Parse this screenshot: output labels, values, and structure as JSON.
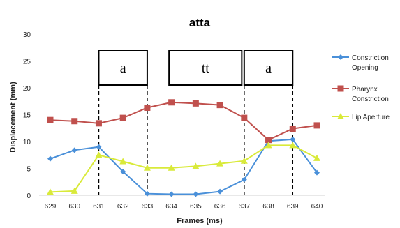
{
  "chart_data": {
    "type": "line",
    "title": "atta",
    "xlabel": "Frames (ms)",
    "ylabel": "Displacement (mm)",
    "ylim": [
      0,
      30
    ],
    "yticks": [
      0,
      5,
      10,
      15,
      20,
      25,
      30
    ],
    "categories": [
      "629",
      "630",
      "631",
      "632",
      "633",
      "634",
      "635",
      "636",
      "637",
      "638",
      "639",
      "640"
    ],
    "grid": false,
    "legend_position": "right",
    "series": [
      {
        "name": "Constriction Opening",
        "legend_lines": [
          "Constriction",
          "Opening"
        ],
        "color": "#4a90d9",
        "marker": "diamond",
        "values": [
          6.8,
          8.4,
          9.0,
          4.4,
          0.3,
          0.2,
          0.2,
          0.7,
          2.9,
          10.1,
          10.4,
          4.2
        ]
      },
      {
        "name": "Pharynx Constriction",
        "legend_lines": [
          "Pharynx",
          "Constriction"
        ],
        "color": "#c0504d",
        "marker": "square",
        "values": [
          14.0,
          13.8,
          13.4,
          14.4,
          16.3,
          17.3,
          17.1,
          16.8,
          14.4,
          10.3,
          12.4,
          13.0
        ]
      },
      {
        "name": "Lip Aperture",
        "legend_lines": [
          "Lip Aperture"
        ],
        "color": "#d9ea3a",
        "marker": "triangle",
        "values": [
          0.6,
          0.8,
          7.5,
          6.3,
          5.1,
          5.1,
          5.4,
          5.9,
          6.4,
          9.3,
          9.3,
          6.9
        ]
      }
    ],
    "segments": [
      {
        "label": "a",
        "from": "631",
        "to": "633"
      },
      {
        "label": "tt",
        "from": "634",
        "to": "637"
      },
      {
        "label": "a",
        "from": "637",
        "to": "639"
      }
    ]
  }
}
